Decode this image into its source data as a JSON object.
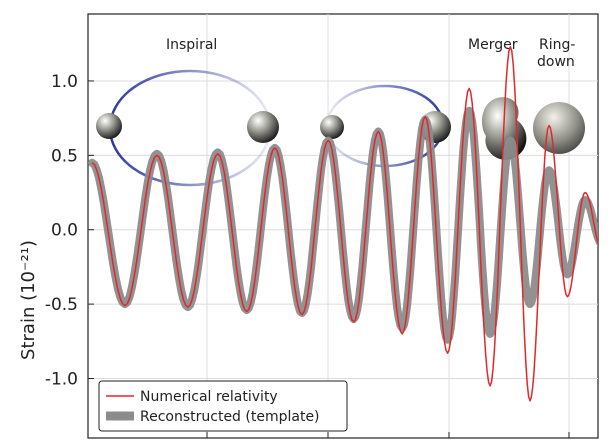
{
  "chart_data": {
    "type": "line",
    "title": "",
    "xlabel": "",
    "ylabel": "Strain (10⁻²¹)",
    "ylim": [
      -1.4,
      1.45
    ],
    "yticks": [
      1.0,
      0.5,
      0.0,
      -0.5,
      -1.0
    ],
    "ytick_labels": [
      "1.0",
      "0.5",
      "0.0",
      "-0.5",
      "-1.0"
    ],
    "xticks_count": 4,
    "grid": true,
    "legend": "bottom-left",
    "stages": [
      "Inspiral",
      "Merger",
      "Ring-\ndown"
    ],
    "series": [
      {
        "name": "Numerical relativity",
        "color": "#e0282c",
        "style": "thin-line",
        "peaks": [
          0.45,
          -0.51,
          0.5,
          -0.52,
          0.51,
          -0.55,
          0.55,
          -0.57,
          0.6,
          -0.62,
          0.66,
          -0.7,
          0.76,
          -0.83,
          0.95,
          -1.05,
          1.23,
          -1.15,
          0.7,
          -0.45,
          0.25,
          -0.15,
          0.1,
          -0.05,
          0.03
        ]
      },
      {
        "name": "Reconstructed (template)",
        "color": "#8c8c8c",
        "style": "thick-band",
        "peaks": [
          0.45,
          -0.5,
          0.51,
          -0.52,
          0.52,
          -0.54,
          0.55,
          -0.56,
          0.6,
          -0.6,
          0.66,
          -0.66,
          0.74,
          -0.74,
          0.8,
          -0.7,
          0.6,
          -0.5,
          0.4,
          -0.3,
          0.2,
          -0.1,
          0.05
        ]
      }
    ]
  }
}
